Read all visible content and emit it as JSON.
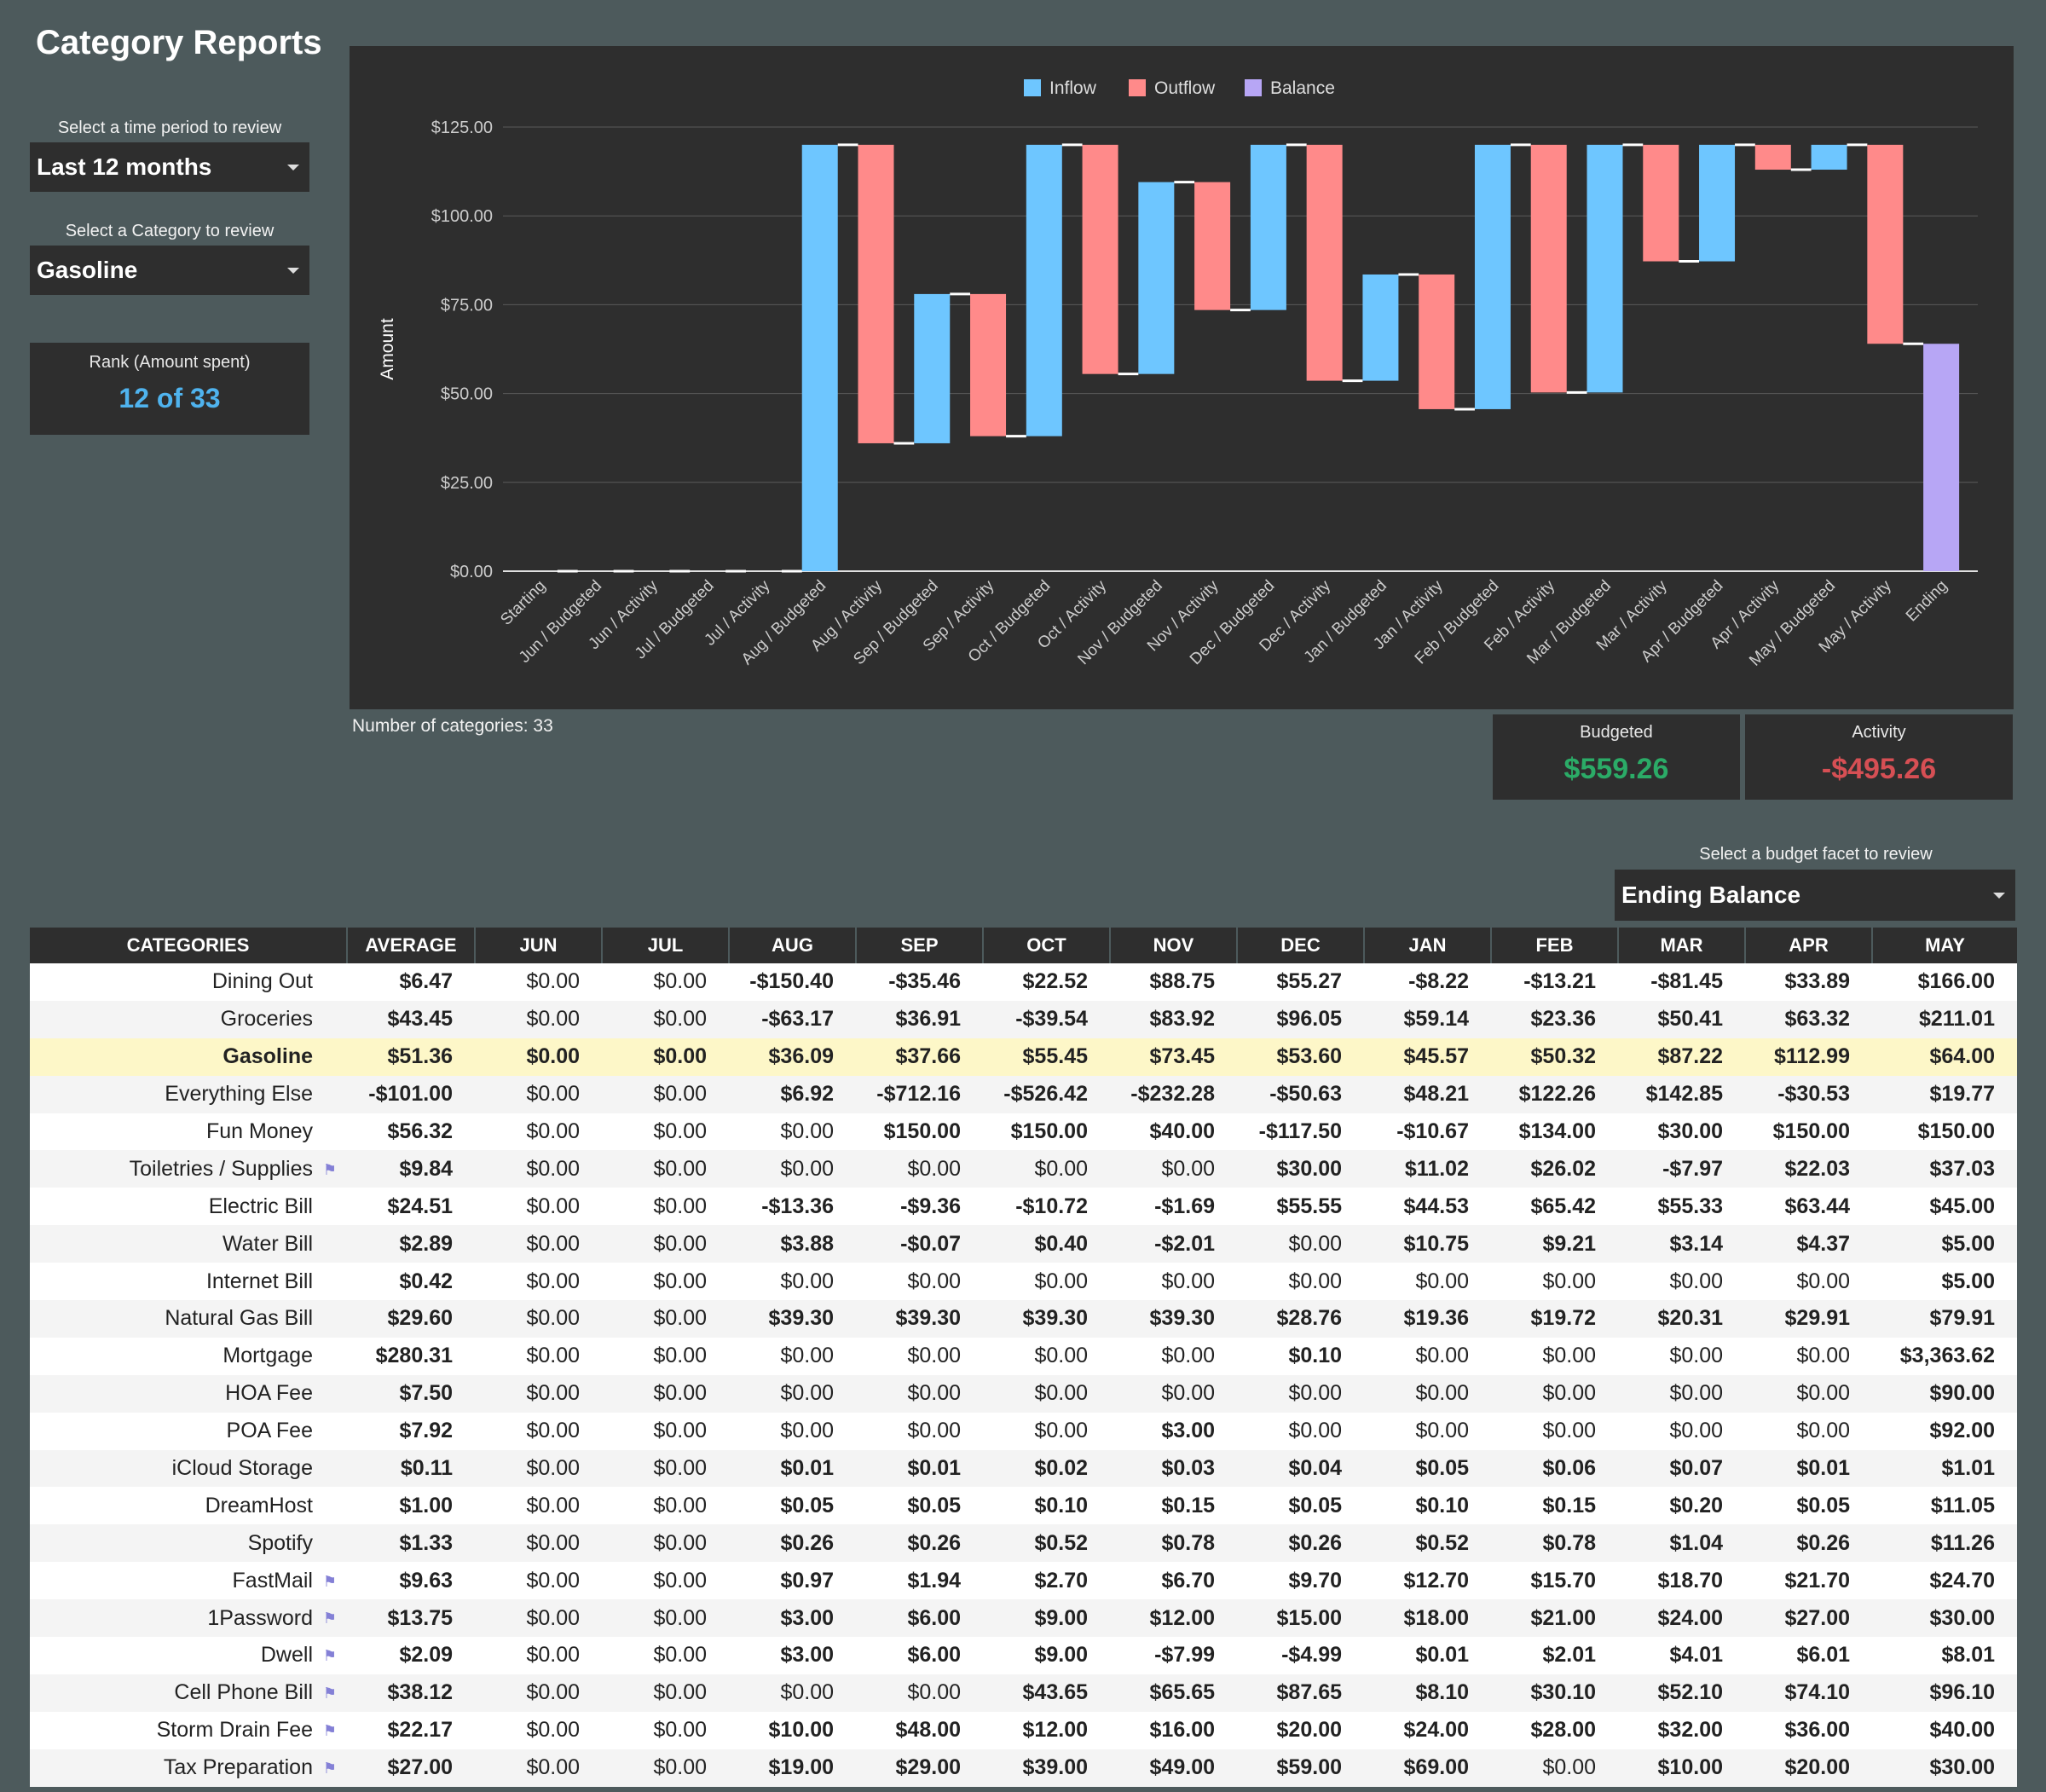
{
  "page": {
    "title": "Category Reports"
  },
  "controls": {
    "period_label": "Select a time period to review",
    "period_value": "Last 12 months",
    "category_label": "Select a Category to review",
    "category_value": "Gasoline",
    "rank_label": "Rank (Amount spent)",
    "rank_value": "12 of 33"
  },
  "summary": {
    "category_count": "Number of categories: 33",
    "budgeted_label": "Budgeted",
    "budgeted_value": "$559.26",
    "activity_label": "Activity",
    "activity_value": "-$495.26"
  },
  "facet": {
    "label": "Select a budget facet to review",
    "value": "Ending Balance"
  },
  "colors": {
    "inflow": "#6ec6ff",
    "outflow": "#ff8a8a",
    "balance": "#b7a6f5",
    "positive": "#2bab67",
    "negative": "#d64f54",
    "low": "#f0a02a",
    "zero": "#b5b5b5"
  },
  "chart_data": {
    "type": "bar",
    "subtype": "waterfall",
    "ylabel": "Amount",
    "ylim": [
      0,
      125
    ],
    "yticks": [
      "$0.00",
      "$25.00",
      "$50.00",
      "$75.00",
      "$100.00",
      "$125.00"
    ],
    "legend_position": "top-center",
    "legend": [
      "Inflow",
      "Outflow",
      "Balance"
    ],
    "categories": [
      "Starting",
      "Jun / Budgeted",
      "Jun / Activity",
      "Jul / Budgeted",
      "Jul / Activity",
      "Aug / Budgeted",
      "Aug / Activity",
      "Sep / Budgeted",
      "Sep / Activity",
      "Oct / Budgeted",
      "Oct / Activity",
      "Nov / Budgeted",
      "Nov / Activity",
      "Dec / Budgeted",
      "Dec / Activity",
      "Jan / Budgeted",
      "Jan / Activity",
      "Feb / Budgeted",
      "Feb / Activity",
      "Mar / Budgeted",
      "Mar / Activity",
      "Apr / Budgeted",
      "Apr / Activity",
      "May / Budgeted",
      "May / Activity",
      "Ending"
    ],
    "bars": [
      {
        "type": "none",
        "from": 0,
        "to": 0
      },
      {
        "type": "none",
        "from": 0,
        "to": 0
      },
      {
        "type": "none",
        "from": 0,
        "to": 0
      },
      {
        "type": "none",
        "from": 0,
        "to": 0
      },
      {
        "type": "none",
        "from": 0,
        "to": 0
      },
      {
        "type": "inflow",
        "from": 0,
        "to": 120
      },
      {
        "type": "outflow",
        "from": 120,
        "to": 36
      },
      {
        "type": "inflow",
        "from": 36,
        "to": 78
      },
      {
        "type": "outflow",
        "from": 78,
        "to": 38
      },
      {
        "type": "inflow",
        "from": 38,
        "to": 120
      },
      {
        "type": "outflow",
        "from": 120,
        "to": 55.5
      },
      {
        "type": "inflow",
        "from": 55.5,
        "to": 109.5
      },
      {
        "type": "outflow",
        "from": 109.5,
        "to": 73.5
      },
      {
        "type": "inflow",
        "from": 73.5,
        "to": 120
      },
      {
        "type": "outflow",
        "from": 120,
        "to": 53.6
      },
      {
        "type": "inflow",
        "from": 53.6,
        "to": 83.5
      },
      {
        "type": "outflow",
        "from": 83.5,
        "to": 45.6
      },
      {
        "type": "inflow",
        "from": 45.6,
        "to": 120
      },
      {
        "type": "outflow",
        "from": 120,
        "to": 50.3
      },
      {
        "type": "inflow",
        "from": 50.3,
        "to": 120
      },
      {
        "type": "outflow",
        "from": 120,
        "to": 87.2
      },
      {
        "type": "inflow",
        "from": 87.2,
        "to": 120
      },
      {
        "type": "outflow",
        "from": 120,
        "to": 113
      },
      {
        "type": "inflow",
        "from": 113,
        "to": 120
      },
      {
        "type": "outflow",
        "from": 120,
        "to": 64
      },
      {
        "type": "balance",
        "from": 0,
        "to": 64
      }
    ]
  },
  "table": {
    "headers": [
      "CATEGORIES",
      "AVERAGE",
      "JUN",
      "JUL",
      "AUG",
      "SEP",
      "OCT",
      "NOV",
      "DEC",
      "JAN",
      "FEB",
      "MAR",
      "APR",
      "MAY"
    ],
    "rows": [
      {
        "name": "Dining Out",
        "flag": false,
        "highlight": false,
        "avg": "$6.47",
        "values": [
          "$0.00",
          "$0.00",
          "-$150.40",
          "-$35.46",
          "$22.52",
          "$88.75",
          "$55.27",
          "-$8.22",
          "-$13.21",
          "-$81.45",
          "$33.89",
          "$166.00"
        ]
      },
      {
        "name": "Groceries",
        "flag": false,
        "highlight": false,
        "avg": "$43.45",
        "values": [
          "$0.00",
          "$0.00",
          "-$63.17",
          "$36.91",
          "-$39.54",
          "$83.92",
          "$96.05",
          "$59.14",
          "$23.36",
          "$50.41",
          "$63.32",
          "$211.01"
        ]
      },
      {
        "name": "Gasoline",
        "flag": false,
        "highlight": true,
        "avg": "$51.36",
        "values": [
          "$0.00",
          "$0.00",
          "$36.09",
          "$37.66",
          "$55.45",
          "$73.45",
          "$53.60",
          "$45.57",
          "$50.32",
          "$87.22",
          "$112.99",
          "$64.00"
        ]
      },
      {
        "name": "Everything Else",
        "flag": false,
        "highlight": false,
        "avg": "-$101.00",
        "values": [
          "$0.00",
          "$0.00",
          "$6.92",
          "-$712.16",
          "-$526.42",
          "-$232.28",
          "-$50.63",
          "$48.21",
          "$122.26",
          "$142.85",
          "-$30.53",
          "$19.77"
        ]
      },
      {
        "name": "Fun Money",
        "flag": false,
        "highlight": false,
        "avg": "$56.32",
        "values": [
          "$0.00",
          "$0.00",
          "$0.00",
          "$150.00",
          "$150.00",
          "$40.00",
          "-$117.50",
          "-$10.67",
          "$134.00",
          "$30.00",
          "$150.00",
          "$150.00"
        ]
      },
      {
        "name": "Toiletries / Supplies",
        "flag": true,
        "highlight": false,
        "avg": "$9.84",
        "values": [
          "$0.00",
          "$0.00",
          "$0.00",
          "$0.00",
          "$0.00",
          "$0.00",
          "$30.00",
          "$11.02",
          "$26.02",
          "-$7.97",
          "$22.03",
          "$37.03"
        ]
      },
      {
        "name": "Electric Bill",
        "flag": false,
        "highlight": false,
        "avg": "$24.51",
        "values": [
          "$0.00",
          "$0.00",
          "-$13.36",
          "-$9.36",
          "-$10.72",
          "-$1.69",
          "$55.55",
          "$44.53",
          "$65.42",
          "$55.33",
          "$63.44",
          "$45.00"
        ]
      },
      {
        "name": "Water Bill",
        "flag": false,
        "highlight": false,
        "avg": "$2.89",
        "values": [
          "$0.00",
          "$0.00",
          "$3.88",
          "-$0.07",
          "$0.40",
          "-$2.01",
          "$0.00",
          "$10.75",
          "$9.21",
          "$3.14",
          "$4.37",
          "$5.00"
        ]
      },
      {
        "name": "Internet Bill",
        "flag": false,
        "highlight": false,
        "avg": "$0.42",
        "values": [
          "$0.00",
          "$0.00",
          "$0.00",
          "$0.00",
          "$0.00",
          "$0.00",
          "$0.00",
          "$0.00",
          "$0.00",
          "$0.00",
          "$0.00",
          "$5.00"
        ]
      },
      {
        "name": "Natural Gas Bill",
        "flag": false,
        "highlight": false,
        "avg": "$29.60",
        "values": [
          "$0.00",
          "$0.00",
          "$39.30",
          "$39.30",
          "$39.30",
          "$39.30",
          "$28.76",
          "$19.36",
          "$19.72",
          "$20.31",
          "$29.91",
          "$79.91"
        ]
      },
      {
        "name": "Mortgage",
        "flag": false,
        "highlight": false,
        "avg": "$280.31",
        "values": [
          "$0.00",
          "$0.00",
          "$0.00",
          "$0.00",
          "$0.00",
          "$0.00",
          "$0.10",
          "$0.00",
          "$0.00",
          "$0.00",
          "$0.00",
          "$3,363.62"
        ]
      },
      {
        "name": "HOA Fee",
        "flag": false,
        "highlight": false,
        "avg": "$7.50",
        "values": [
          "$0.00",
          "$0.00",
          "$0.00",
          "$0.00",
          "$0.00",
          "$0.00",
          "$0.00",
          "$0.00",
          "$0.00",
          "$0.00",
          "$0.00",
          "$90.00"
        ]
      },
      {
        "name": "POA Fee",
        "flag": false,
        "highlight": false,
        "avg": "$7.92",
        "values": [
          "$0.00",
          "$0.00",
          "$0.00",
          "$0.00",
          "$0.00",
          "$3.00",
          "$0.00",
          "$0.00",
          "$0.00",
          "$0.00",
          "$0.00",
          "$92.00"
        ]
      },
      {
        "name": "iCloud Storage",
        "flag": false,
        "highlight": false,
        "avg": "$0.11",
        "values": [
          "$0.00",
          "$0.00",
          "$0.01",
          "$0.01",
          "$0.02",
          "$0.03",
          "$0.04",
          "$0.05",
          "$0.06",
          "$0.07",
          "$0.01",
          "$1.01"
        ]
      },
      {
        "name": "DreamHost",
        "flag": false,
        "highlight": false,
        "avg": "$1.00",
        "values": [
          "$0.00",
          "$0.00",
          "$0.05",
          "$0.05",
          "$0.10",
          "$0.15",
          "$0.05",
          "$0.10",
          "$0.15",
          "$0.20",
          "$0.05",
          "$11.05"
        ]
      },
      {
        "name": "Spotify",
        "flag": false,
        "highlight": false,
        "avg": "$1.33",
        "values": [
          "$0.00",
          "$0.00",
          "$0.26",
          "$0.26",
          "$0.52",
          "$0.78",
          "$0.26",
          "$0.52",
          "$0.78",
          "$1.04",
          "$0.26",
          "$11.26"
        ]
      },
      {
        "name": "FastMail",
        "flag": true,
        "highlight": false,
        "avg": "$9.63",
        "values": [
          "$0.00",
          "$0.00",
          "$0.97",
          "$1.94",
          "$2.70",
          "$6.70",
          "$9.70",
          "$12.70",
          "$15.70",
          "$18.70",
          "$21.70",
          "$24.70"
        ]
      },
      {
        "name": "1Password",
        "flag": true,
        "highlight": false,
        "avg": "$13.75",
        "values": [
          "$0.00",
          "$0.00",
          "$3.00",
          "$6.00",
          "$9.00",
          "$12.00",
          "$15.00",
          "$18.00",
          "$21.00",
          "$24.00",
          "$27.00",
          "$30.00"
        ]
      },
      {
        "name": "Dwell",
        "flag": true,
        "highlight": false,
        "avg": "$2.09",
        "values": [
          "$0.00",
          "$0.00",
          "$3.00",
          "$6.00",
          "$9.00",
          "-$7.99",
          "-$4.99",
          "$0.01",
          "$2.01",
          "$4.01",
          "$6.01",
          "$8.01"
        ]
      },
      {
        "name": "Cell Phone Bill",
        "flag": true,
        "highlight": false,
        "avg": "$38.12",
        "values": [
          "$0.00",
          "$0.00",
          "$0.00",
          "$0.00",
          "$43.65",
          "$65.65",
          "$87.65",
          "$8.10",
          "$30.10",
          "$52.10",
          "$74.10",
          "$96.10"
        ]
      },
      {
        "name": "Storm Drain Fee",
        "flag": true,
        "highlight": false,
        "avg": "$22.17",
        "values": [
          "$0.00",
          "$0.00",
          "$10.00",
          "$48.00",
          "$12.00",
          "$16.00",
          "$20.00",
          "$24.00",
          "$28.00",
          "$32.00",
          "$36.00",
          "$40.00"
        ]
      },
      {
        "name": "Tax Preparation",
        "flag": true,
        "highlight": false,
        "avg": "$27.00",
        "values": [
          "$0.00",
          "$0.00",
          "$19.00",
          "$29.00",
          "$39.00",
          "$49.00",
          "$59.00",
          "$69.00",
          "$0.00",
          "$10.00",
          "$20.00",
          "$30.00"
        ]
      }
    ]
  }
}
